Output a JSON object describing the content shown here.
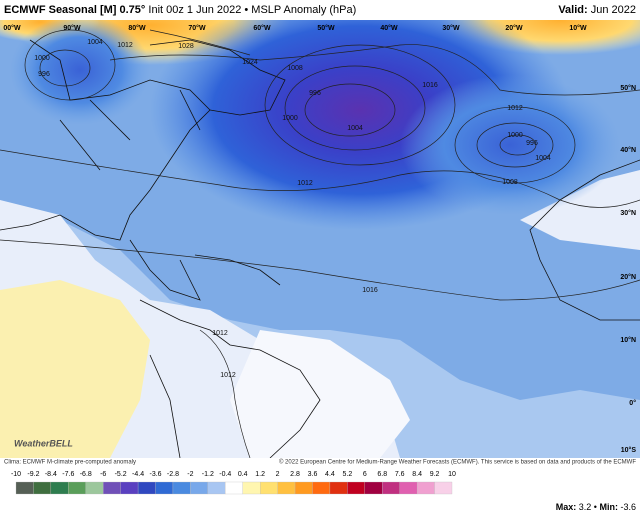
{
  "header": {
    "title_bold": "ECMWF Seasonal [M] 0.75°",
    "title_rest": "Init 00z 1 Jun 2022 • MSLP Anomaly (hPa)",
    "valid_label": "Valid:",
    "valid_value": "Jun 2022"
  },
  "map": {
    "longitude_labels": [
      "00°W",
      "90°W",
      "80°W",
      "70°W",
      "60°W",
      "50°W",
      "40°W",
      "30°W",
      "20°W",
      "10°W"
    ],
    "latitude_labels": [
      "50°N",
      "40°N",
      "30°N",
      "20°N",
      "10°N",
      "0°",
      "10°S"
    ],
    "contour_labels": [
      "1004",
      "1012",
      "1000",
      "996",
      "1028",
      "1024",
      "1008",
      "996",
      "1000",
      "1004",
      "1016",
      "1012",
      "1000",
      "996",
      "1004",
      "1008",
      "1012",
      "1016",
      "1012",
      "1012"
    ],
    "logo": "WeatherBELL"
  },
  "footer": {
    "climo_note": "Clima: ECMWF M-climate pre-computed anomaly",
    "copyright": "© 2022 European Centre for Medium-Range Weather Forecasts (ECMWF). This service is based on data and products of the ECMWF"
  },
  "colorbar": {
    "ticks": [
      -10,
      -9.2,
      -8.4,
      -7.6,
      -6.8,
      -6,
      -5.2,
      -4.4,
      -3.6,
      -2.8,
      -2,
      -1.2,
      -0.4,
      0.4,
      1.2,
      2,
      2.8,
      3.6,
      4.4,
      5.2,
      6,
      6.8,
      7.6,
      8.4,
      9.2,
      10
    ]
  },
  "stats": {
    "max_label": "Max:",
    "max": 3.2,
    "separator": "•",
    "min_label": "Min:",
    "min": -3.6
  }
}
